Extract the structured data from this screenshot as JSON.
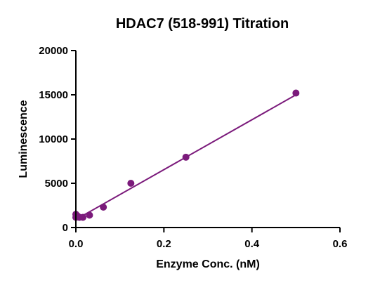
{
  "chart_data": {
    "type": "scatter",
    "title": "HDAC7 (518-991) Titration",
    "xlabel": "Enzyme Conc. (nM)",
    "ylabel": "Luminescence",
    "xlim": [
      0,
      0.6
    ],
    "ylim": [
      0,
      20000
    ],
    "x_ticks": [
      0,
      0.2,
      0.4,
      0.6
    ],
    "x_tick_labels": [
      "0.0",
      "0.2",
      "0.4",
      "0.6"
    ],
    "y_ticks": [
      0,
      5000,
      10000,
      15000,
      20000
    ],
    "y_tick_labels": [
      "0",
      "5000",
      "10000",
      "15000",
      "20000"
    ],
    "grid": false,
    "legend": "none",
    "color": "#7b1a7b",
    "series": [
      {
        "points": [
          {
            "x": 0.0,
            "y": 1500
          },
          {
            "x": 0.0,
            "y": 1150
          },
          {
            "x": 0.004,
            "y": 1300
          },
          {
            "x": 0.008,
            "y": 1150
          },
          {
            "x": 0.016,
            "y": 1150
          },
          {
            "x": 0.031,
            "y": 1400
          },
          {
            "x": 0.0625,
            "y": 2300
          },
          {
            "x": 0.125,
            "y": 5000
          },
          {
            "x": 0.25,
            "y": 7950
          },
          {
            "x": 0.5,
            "y": 15200
          }
        ],
        "fit_line": [
          {
            "x": 0.0,
            "y": 900
          },
          {
            "x": 0.5,
            "y": 15000
          }
        ]
      }
    ]
  }
}
